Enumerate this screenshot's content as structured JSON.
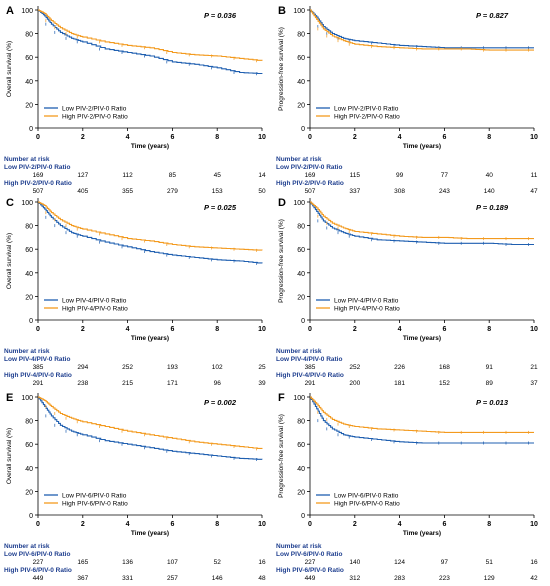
{
  "figure": {
    "colors": {
      "low": "#1f5fb0",
      "high": "#f39a1e",
      "risk_title": "#1f3f8f",
      "axis": "#000000"
    },
    "axis_labels": {
      "time": "Time (years)",
      "os": "Overall survival (%)",
      "pfs": "Progression-free survival (%)"
    },
    "risk_heading": "Number at risk"
  },
  "chart_data": [
    {
      "type": "line",
      "panel": "A",
      "ylabel": "Overall survival (%)",
      "xlabel": "Time (years)",
      "pvalue": "P = 0.036",
      "xlim": [
        0,
        10
      ],
      "ylim": [
        0,
        100
      ],
      "xticks": [
        "0",
        "2",
        "4",
        "6",
        "8",
        "10"
      ],
      "yticks": [
        "0",
        "20",
        "40",
        "60",
        "80",
        "100"
      ],
      "series": [
        {
          "name": "Low PIV-2/PIV-0 Ratio",
          "x": [
            0,
            0.3,
            0.6,
            1,
            1.5,
            2,
            3,
            4,
            5,
            6,
            7,
            8,
            9,
            10
          ],
          "y": [
            100,
            95,
            88,
            81,
            76,
            73,
            67,
            64,
            61,
            56,
            54,
            51,
            47,
            46
          ]
        },
        {
          "name": "High PIV-2/PIV-0 Ratio",
          "x": [
            0,
            0.3,
            0.6,
            1,
            1.5,
            2,
            3,
            4,
            5,
            6,
            7,
            8,
            9,
            10
          ],
          "y": [
            100,
            97,
            91,
            85,
            80,
            77,
            73,
            70,
            68,
            64,
            62,
            61,
            59,
            57
          ]
        }
      ],
      "risk": {
        "low_label": "Low PIV-2/PIV-0 Ratio",
        "low": [
          "169",
          "127",
          "112",
          "85",
          "45",
          "14"
        ],
        "high_label": "High PIV-2/PIV-0 Ratio",
        "high": [
          "507",
          "405",
          "355",
          "279",
          "153",
          "50"
        ]
      }
    },
    {
      "type": "line",
      "panel": "B",
      "ylabel": "Progression-free survival (%)",
      "xlabel": "Time (years)",
      "pvalue": "P = 0.827",
      "xlim": [
        0,
        10
      ],
      "ylim": [
        0,
        100
      ],
      "xticks": [
        "0",
        "2",
        "4",
        "6",
        "8",
        "10"
      ],
      "yticks": [
        "0",
        "20",
        "40",
        "60",
        "80",
        "100"
      ],
      "series": [
        {
          "name": "Low PIV-2/PIV-0 Ratio",
          "x": [
            0,
            0.3,
            0.6,
            1,
            1.5,
            2,
            3,
            4,
            5,
            6,
            7,
            8,
            9,
            10
          ],
          "y": [
            100,
            94,
            86,
            80,
            76,
            74,
            72,
            70,
            69,
            68,
            68,
            68,
            68,
            68
          ]
        },
        {
          "name": "High PIV-2/PIV-0 Ratio",
          "x": [
            0,
            0.3,
            0.6,
            1,
            1.5,
            2,
            3,
            4,
            5,
            6,
            7,
            8,
            9,
            10
          ],
          "y": [
            100,
            92,
            84,
            78,
            74,
            71,
            69,
            68,
            67,
            67,
            67,
            66,
            66,
            66
          ]
        }
      ],
      "risk": {
        "low_label": "Low PIV-2/PIV-0 Ratio",
        "low": [
          "169",
          "115",
          "99",
          "77",
          "40",
          "11"
        ],
        "high_label": "High PIV-2/PIV-0 Ratio",
        "high": [
          "507",
          "337",
          "308",
          "243",
          "140",
          "47"
        ]
      }
    },
    {
      "type": "line",
      "panel": "C",
      "ylabel": "Overall survival (%)",
      "xlabel": "Time (years)",
      "pvalue": "P = 0.025",
      "xlim": [
        0,
        10
      ],
      "ylim": [
        0,
        100
      ],
      "xticks": [
        "0",
        "2",
        "4",
        "6",
        "8",
        "10"
      ],
      "yticks": [
        "0",
        "20",
        "40",
        "60",
        "80",
        "100"
      ],
      "series": [
        {
          "name": "Low PIV-4/PIV-0 Ratio",
          "x": [
            0,
            0.3,
            0.6,
            1,
            1.5,
            2,
            3,
            4,
            5,
            6,
            7,
            8,
            9,
            10
          ],
          "y": [
            100,
            94,
            87,
            80,
            74,
            71,
            66,
            62,
            58,
            55,
            53,
            51,
            50,
            48
          ]
        },
        {
          "name": "High PIV-4/PIV-0 Ratio",
          "x": [
            0,
            0.3,
            0.6,
            1,
            1.5,
            2,
            3,
            4,
            5,
            6,
            7,
            8,
            9,
            10
          ],
          "y": [
            100,
            97,
            91,
            85,
            80,
            77,
            73,
            69,
            67,
            64,
            62,
            61,
            60,
            59
          ]
        }
      ],
      "risk": {
        "low_label": "Low PIV-4/PIV-0 Ratio",
        "low": [
          "385",
          "294",
          "252",
          "193",
          "102",
          "25"
        ],
        "high_label": "High PIV-4/PIV-0 Ratio",
        "high": [
          "291",
          "238",
          "215",
          "171",
          "96",
          "39"
        ]
      }
    },
    {
      "type": "line",
      "panel": "D",
      "ylabel": "Progression-free survival (%)",
      "xlabel": "Time (years)",
      "pvalue": "P = 0.189",
      "xlim": [
        0,
        10
      ],
      "ylim": [
        0,
        100
      ],
      "xticks": [
        "0",
        "2",
        "4",
        "6",
        "8",
        "10"
      ],
      "yticks": [
        "0",
        "20",
        "40",
        "60",
        "80",
        "100"
      ],
      "series": [
        {
          "name": "Low PIV-4/PIV-0 Ratio",
          "x": [
            0,
            0.3,
            0.6,
            1,
            1.5,
            2,
            3,
            4,
            5,
            6,
            7,
            8,
            9,
            10
          ],
          "y": [
            100,
            92,
            84,
            78,
            74,
            71,
            68,
            67,
            66,
            65,
            65,
            65,
            64,
            64
          ]
        },
        {
          "name": "High PIV-4/PIV-0 Ratio",
          "x": [
            0,
            0.3,
            0.6,
            1,
            1.5,
            2,
            3,
            4,
            5,
            6,
            7,
            8,
            9,
            10
          ],
          "y": [
            100,
            95,
            88,
            82,
            78,
            75,
            73,
            71,
            70,
            70,
            69,
            69,
            69,
            69
          ]
        }
      ],
      "risk": {
        "low_label": "Low PIV-4/PIV-0 Ratio",
        "low": [
          "385",
          "252",
          "226",
          "168",
          "91",
          "21"
        ],
        "high_label": "High PIV-4/PIV-0 Ratio",
        "high": [
          "291",
          "200",
          "181",
          "152",
          "89",
          "37"
        ]
      }
    },
    {
      "type": "line",
      "panel": "E",
      "ylabel": "Overall survival (%)",
      "xlabel": "Time (years)",
      "pvalue": "P = 0.002",
      "xlim": [
        0,
        10
      ],
      "ylim": [
        0,
        100
      ],
      "xticks": [
        "0",
        "2",
        "4",
        "6",
        "8",
        "10"
      ],
      "yticks": [
        "0",
        "20",
        "40",
        "60",
        "80",
        "100"
      ],
      "series": [
        {
          "name": "Low PIV-6/PIV-0 Ratio",
          "x": [
            0,
            0.3,
            0.6,
            1,
            1.5,
            2,
            3,
            4,
            5,
            6,
            7,
            8,
            9,
            10
          ],
          "y": [
            100,
            92,
            84,
            76,
            71,
            68,
            63,
            60,
            57,
            54,
            52,
            50,
            48,
            47
          ]
        },
        {
          "name": "High PIV-6/PIV-0 Ratio",
          "x": [
            0,
            0.3,
            0.6,
            1,
            1.5,
            2,
            3,
            4,
            5,
            6,
            7,
            8,
            9,
            10
          ],
          "y": [
            100,
            97,
            92,
            86,
            82,
            79,
            75,
            71,
            68,
            65,
            62,
            60,
            58,
            56
          ]
        }
      ],
      "risk": {
        "low_label": "Low PIV-6/PIV-0 Ratio",
        "low": [
          "227",
          "165",
          "136",
          "107",
          "52",
          "16"
        ],
        "high_label": "High PIV-6/PIV-0 Ratio",
        "high": [
          "449",
          "367",
          "331",
          "257",
          "146",
          "48"
        ]
      }
    },
    {
      "type": "line",
      "panel": "F",
      "ylabel": "Progression-free survival (%)",
      "xlabel": "Time (years)",
      "pvalue": "P = 0.013",
      "xlim": [
        0,
        10
      ],
      "ylim": [
        0,
        100
      ],
      "xticks": [
        "0",
        "2",
        "4",
        "6",
        "8",
        "10"
      ],
      "yticks": [
        "0",
        "20",
        "40",
        "60",
        "80",
        "100"
      ],
      "series": [
        {
          "name": "Low PIV-6/PIV-0 Ratio",
          "x": [
            0,
            0.3,
            0.6,
            1,
            1.5,
            2,
            3,
            4,
            5,
            6,
            7,
            8,
            9,
            10
          ],
          "y": [
            100,
            90,
            80,
            73,
            68,
            66,
            64,
            62,
            61,
            61,
            61,
            61,
            61,
            61
          ]
        },
        {
          "name": "High PIV-6/PIV-0 Ratio",
          "x": [
            0,
            0.3,
            0.6,
            1,
            1.5,
            2,
            3,
            4,
            5,
            6,
            7,
            8,
            9,
            10
          ],
          "y": [
            100,
            94,
            87,
            81,
            77,
            75,
            73,
            72,
            71,
            70,
            70,
            70,
            70,
            70
          ]
        }
      ],
      "risk": {
        "low_label": "Low PIV-6/PIV-0 Ratio",
        "low": [
          "227",
          "140",
          "124",
          "97",
          "51",
          "16"
        ],
        "high_label": "High PIV-6/PIV-0 Ratio",
        "high": [
          "449",
          "312",
          "283",
          "223",
          "129",
          "42"
        ]
      }
    }
  ]
}
